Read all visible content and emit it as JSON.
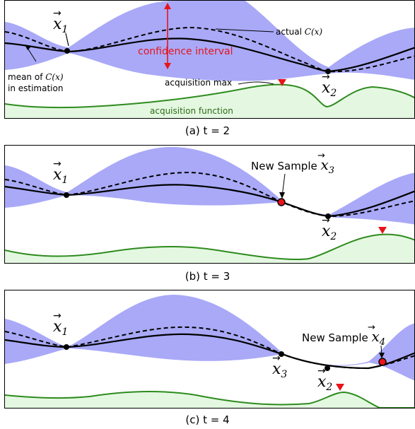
{
  "panels": [
    {
      "caption": "(a) t = 2",
      "points": [
        {
          "var": "x",
          "sub": "1"
        },
        {
          "var": "x",
          "sub": "2"
        }
      ],
      "annotations": {
        "actual": "actual",
        "actual_math": "C(x)",
        "confidence": "confidence interval",
        "mean_line1": "mean of",
        "mean_math": "C(x)",
        "mean_line2": "in estimation",
        "acq_max": "acquisition max",
        "acq_fn": "acquisition function"
      }
    },
    {
      "caption": "(b) t = 3",
      "points": [
        {
          "var": "x",
          "sub": "1"
        },
        {
          "var": "x",
          "sub": "2"
        }
      ],
      "annotations": {
        "new_sample": "New Sample",
        "new_sample_sub": "3"
      }
    },
    {
      "caption": "(c) t = 4",
      "points": [
        {
          "var": "x",
          "sub": "1"
        },
        {
          "var": "x",
          "sub": "3"
        },
        {
          "var": "x",
          "sub": "2"
        }
      ],
      "annotations": {
        "new_sample": "New Sample",
        "new_sample_sub": "4"
      }
    }
  ],
  "colors": {
    "confidence_fill": "#a9a9f8",
    "acquisition_line": "#2e8b1e",
    "acquisition_fill": "#e4f8e1",
    "highlight_red": "#e8141a",
    "annotation_red": "#e8141a"
  }
}
